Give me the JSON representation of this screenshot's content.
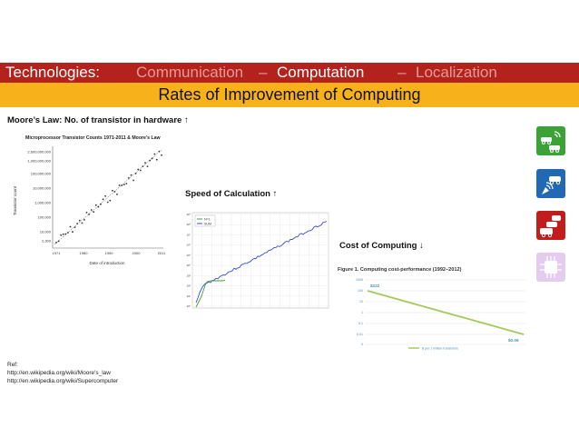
{
  "header": {
    "prefix": "Technologies:",
    "communication": "Communication",
    "sep1": " – ",
    "computation": "Computation",
    "sep2": " – ",
    "localization": "Localization",
    "subtitle": "Rates of Improvement of Computing",
    "colors": {
      "bar": "#b3221c",
      "subtitle_bar": "#f7b21b",
      "dim_text": "#e89a96"
    }
  },
  "moore": {
    "label": "Moore’s Law:  No. of transistor in hardware ↑",
    "figure_title": "Microprocessor Transistor Counts 1971-2011 & Moore’s Law",
    "ylabel": "Transistor count",
    "xlabel": "Date of introduction",
    "y_ticks": [
      "2,600,000,000",
      "1,000,000,000",
      "100,000,000",
      "10,000,000",
      "1,000,000",
      "100,000",
      "10,000",
      "2,300"
    ],
    "x_ticks": [
      "1971",
      "1980",
      "1990",
      "2000",
      "2011"
    ]
  },
  "speed": {
    "label": "Speed of Calculation ↑",
    "y_ticks": [
      "10⁹",
      "10⁸",
      "10⁷",
      "10⁶",
      "10⁵",
      "10⁴",
      "10³",
      "10²",
      "10¹",
      "10⁰"
    ],
    "legend": [
      "N=1",
      "SUM"
    ]
  },
  "cost": {
    "label": "Cost of Computing ↓",
    "figure_title": "Figure 1. Computing cost-performance (1992–2012)",
    "start_value": "$222",
    "end_value": "$0.06",
    "y_ticks": [
      "1000",
      "100",
      "10",
      "1",
      "0.1",
      "0.01",
      "0"
    ],
    "legend": "$ per 1 million transistors"
  },
  "refs": {
    "title": "Ref:",
    "link1": "http://en.wikipedia.org/wiki/Moore's_law",
    "link2": "http://en.wikipedia.org/wiki/Supercomputer"
  },
  "tiles": {
    "colors": [
      "#3aa335",
      "#2168b5",
      "#c21d1d",
      "#e3ccee"
    ],
    "icons": [
      "connected-cars-icon",
      "car-satellite-icon",
      "traffic-jam-icon",
      "chip-icon"
    ]
  }
}
